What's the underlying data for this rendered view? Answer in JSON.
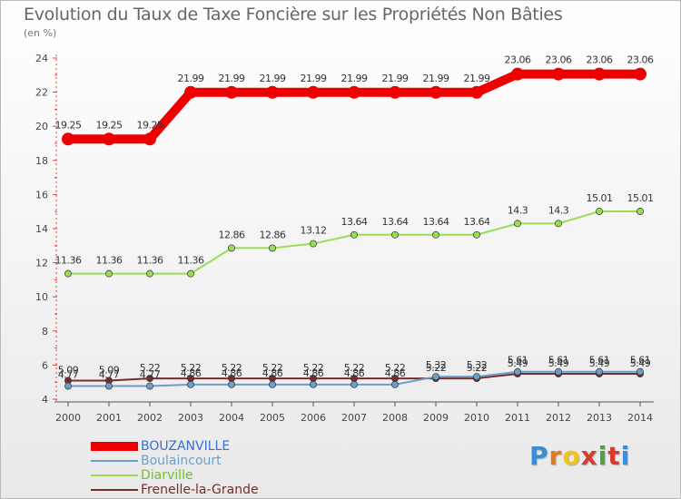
{
  "title": "Evolution du Taux de Taxe Foncière sur les Propriétés Non Bâties",
  "subtitle": "(en %)",
  "brand": {
    "letters": [
      "P",
      "r",
      "o",
      "x",
      "i",
      "t",
      "i"
    ],
    "colors": [
      "#3a8dd6",
      "#e07b22",
      "#f0c419",
      "#d93a2b",
      "#4aa63a",
      "#d93a2b",
      "#3a8dd6"
    ]
  },
  "chart_data": {
    "type": "line",
    "title": "Evolution du Taux de Taxe Foncière sur les Propriétés Non Bâties",
    "ylabel": "(en %)",
    "x": [
      "2000",
      "2001",
      "2002",
      "2003",
      "2004",
      "2005",
      "2006",
      "2007",
      "2008",
      "2009",
      "2010",
      "2011",
      "2012",
      "2013",
      "2014"
    ],
    "ylim": [
      4,
      24
    ],
    "yticks": [
      "4",
      "6",
      "8",
      "10",
      "12",
      "14",
      "16",
      "18",
      "20",
      "22",
      "24"
    ],
    "series": [
      {
        "name": "BOUZANVILLE",
        "color": "#ee0000",
        "values": [
          19.25,
          19.25,
          19.25,
          21.99,
          21.99,
          21.99,
          21.99,
          21.99,
          21.99,
          21.99,
          21.99,
          23.06,
          23.06,
          23.06,
          23.06
        ],
        "labels": [
          "19.25",
          "19.25",
          "19.25",
          "21.99",
          "21.99",
          "21.99",
          "21.99",
          "21.99",
          "21.99",
          "21.99",
          "21.99",
          "23.06",
          "23.06",
          "23.06",
          "23.06"
        ]
      },
      {
        "name": "Boulaincourt",
        "color": "#6b9fc8",
        "values": [
          4.77,
          4.77,
          4.77,
          4.86,
          4.86,
          4.86,
          4.86,
          4.86,
          4.86,
          5.32,
          5.32,
          5.61,
          5.61,
          5.61,
          5.61
        ],
        "labels": [
          "4.77",
          "4.77",
          "4.77",
          "4.86",
          "4.86",
          "4.86",
          "4.86",
          "4.86",
          "4.86",
          "5.32",
          "5.32",
          "5.61",
          "5.61",
          "5.61",
          "5.61"
        ]
      },
      {
        "name": "Diarville",
        "color": "#99dd55",
        "values": [
          11.36,
          11.36,
          11.36,
          11.36,
          12.86,
          12.86,
          13.12,
          13.64,
          13.64,
          13.64,
          13.64,
          14.3,
          14.3,
          15.01,
          15.01
        ],
        "labels": [
          "11.36",
          "11.36",
          "11.36",
          "11.36",
          "12.86",
          "12.86",
          "13.12",
          "13.64",
          "13.64",
          "13.64",
          "13.64",
          "14.3",
          "14.3",
          "15.01",
          "15.01"
        ]
      },
      {
        "name": "Frenelle-la-Grande",
        "color": "#7a2a2a",
        "values": [
          5.09,
          5.09,
          5.22,
          5.22,
          5.22,
          5.22,
          5.22,
          5.22,
          5.22,
          5.22,
          5.22,
          5.49,
          5.49,
          5.49,
          5.49
        ],
        "labels": [
          "5.09",
          "5.09",
          "5.22",
          "5.22",
          "5.22",
          "5.22",
          "5.22",
          "5.22",
          "5.22",
          "5.22",
          "5.22",
          "5.49",
          "5.49",
          "5.49",
          "5.49"
        ]
      }
    ],
    "legend": [
      "BOUZANVILLE",
      "Boulaincourt",
      "Diarville",
      "Frenelle-la-Grande"
    ],
    "grid": false,
    "legend_position": "bottom-left"
  }
}
